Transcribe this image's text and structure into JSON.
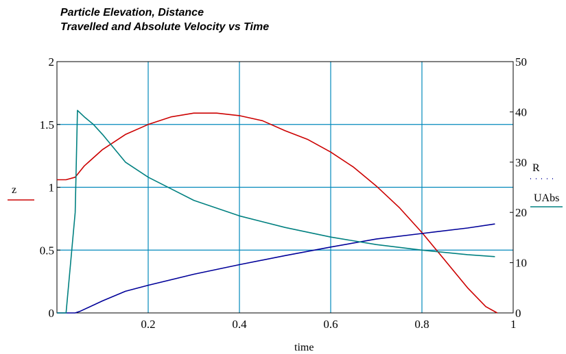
{
  "chart_data": {
    "type": "line",
    "title": [
      "Particle Elevation, Distance",
      "Travelled and Absolute Velocity  vs Time"
    ],
    "xlabel": "time",
    "ylabel_left": "z",
    "ylabel_right": [
      "R",
      "UAbs"
    ],
    "xlim": [
      0,
      1
    ],
    "ylim_left": [
      0,
      2
    ],
    "ylim_right": [
      0,
      50
    ],
    "x_ticks": [
      "0.2",
      "0.4",
      "0.6",
      "0.8",
      "1"
    ],
    "y_left_ticks": [
      "0",
      "0.5",
      "1",
      "1.5",
      "2"
    ],
    "y_right_ticks": [
      "0",
      "10",
      "20",
      "30",
      "40",
      "50"
    ],
    "grid": true,
    "colors": {
      "z": "#cc0000",
      "R": "#000099",
      "UAbs": "#008080",
      "grid": "#0088bb"
    },
    "series": [
      {
        "name": "z",
        "axis": "left",
        "x": [
          0,
          0.02,
          0.04,
          0.06,
          0.1,
          0.15,
          0.2,
          0.25,
          0.3,
          0.35,
          0.4,
          0.45,
          0.5,
          0.55,
          0.6,
          0.65,
          0.7,
          0.75,
          0.8,
          0.85,
          0.9,
          0.94,
          0.965
        ],
        "y": [
          1.06,
          1.06,
          1.08,
          1.17,
          1.3,
          1.42,
          1.5,
          1.56,
          1.59,
          1.59,
          1.57,
          1.53,
          1.45,
          1.38,
          1.28,
          1.16,
          1.01,
          0.84,
          0.64,
          0.42,
          0.2,
          0.05,
          0.0
        ]
      },
      {
        "name": "R",
        "axis": "right",
        "x": [
          0,
          0.04,
          0.05,
          0.1,
          0.15,
          0.2,
          0.3,
          0.4,
          0.5,
          0.6,
          0.7,
          0.8,
          0.9,
          0.96
        ],
        "y": [
          0,
          0,
          0.3,
          2.4,
          4.3,
          5.5,
          7.7,
          9.6,
          11.4,
          13.1,
          14.7,
          15.8,
          16.9,
          17.7
        ]
      },
      {
        "name": "UAbs",
        "axis": "right",
        "x": [
          0,
          0.02,
          0.04,
          0.045,
          0.06,
          0.08,
          0.1,
          0.15,
          0.2,
          0.3,
          0.4,
          0.5,
          0.6,
          0.7,
          0.8,
          0.9,
          0.96
        ],
        "y": [
          0,
          0,
          20,
          40.3,
          39,
          37.5,
          35.5,
          30,
          27,
          22.4,
          19.3,
          17,
          15.1,
          13.6,
          12.5,
          11.6,
          11.2
        ]
      }
    ]
  }
}
